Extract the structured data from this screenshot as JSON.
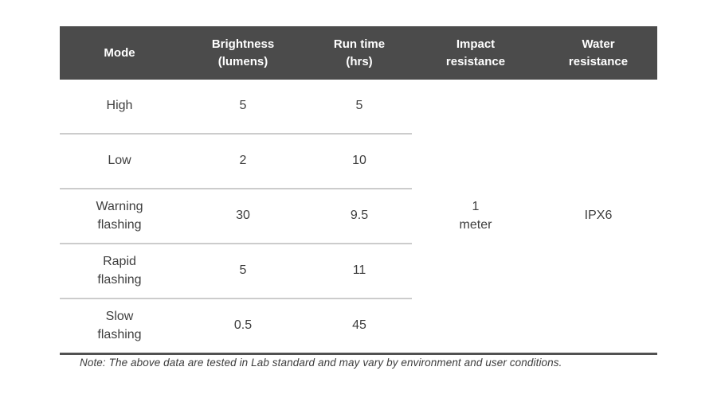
{
  "table": {
    "columns": [
      {
        "label": "Mode"
      },
      {
        "label": "Brightness\n(lumens)"
      },
      {
        "label": "Run time\n(hrs)"
      },
      {
        "label": "Impact\nresistance"
      },
      {
        "label": "Water\nresistance"
      }
    ],
    "rows": [
      {
        "mode": "High",
        "brightness": "5",
        "runtime": "5"
      },
      {
        "mode": "Low",
        "brightness": "2",
        "runtime": "10"
      },
      {
        "mode": "Warning\nflashing",
        "brightness": "30",
        "runtime": "9.5"
      },
      {
        "mode": "Rapid\nflashing",
        "brightness": "5",
        "runtime": "11"
      },
      {
        "mode": "Slow\nflashing",
        "brightness": "0.5",
        "runtime": "45"
      }
    ],
    "impact_resistance": "1\nmeter",
    "water_resistance": "IPX6"
  },
  "note": "Note: The above data are tested in Lab standard and may vary by environment and user conditions.",
  "colors": {
    "header_bg": "#4b4b4b",
    "header_text": "#ffffff",
    "body_text": "#3e3e3e",
    "row_divider": "#cccccc",
    "bottom_rule": "#515151"
  },
  "chart_data": {
    "type": "table",
    "columns": [
      "Mode",
      "Brightness (lumens)",
      "Run time (hrs)",
      "Impact resistance",
      "Water resistance"
    ],
    "rows": [
      [
        "High",
        5,
        5,
        "1 meter",
        "IPX6"
      ],
      [
        "Low",
        2,
        10,
        "1 meter",
        "IPX6"
      ],
      [
        "Warning flashing",
        30,
        9.5,
        "1 meter",
        "IPX6"
      ],
      [
        "Rapid flashing",
        5,
        11,
        "1 meter",
        "IPX6"
      ],
      [
        "Slow flashing",
        0.5,
        45,
        "1 meter",
        "IPX6"
      ]
    ],
    "merged_columns": [
      "Impact resistance",
      "Water resistance"
    ],
    "note": "Note: The above data are tested in Lab standard and may vary by environment and user conditions."
  }
}
